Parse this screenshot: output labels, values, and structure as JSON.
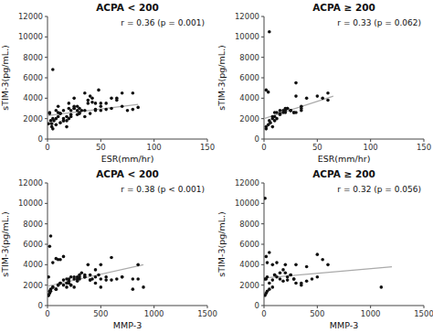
{
  "chart_data": [
    {
      "type": "scatter",
      "title": "ACPA < 200",
      "annotation": "r = 0.36 (p = 0.001)",
      "xlabel": "ESR(mm/hr)",
      "ylabel": "sTIM-3(pg/mL.)",
      "xlim": [
        0,
        150
      ],
      "ylim": [
        0,
        12000
      ],
      "xticks": [
        0,
        50,
        100,
        150
      ],
      "yticks": [
        0,
        2000,
        4000,
        6000,
        8000,
        10000,
        12000
      ],
      "series": [
        {
          "type": "scatter",
          "color": "#111111",
          "x": [
            2,
            3,
            5,
            1,
            4,
            8,
            10,
            12,
            15,
            18,
            20,
            22,
            25,
            28,
            30,
            32,
            35,
            38,
            40,
            42,
            45,
            48,
            50,
            55,
            60,
            65,
            70,
            80,
            85,
            5,
            8,
            12,
            15,
            18,
            22,
            25,
            28,
            30,
            35,
            38,
            42,
            45,
            50,
            2,
            4,
            6,
            8,
            10,
            12,
            15,
            18,
            20,
            22,
            25,
            28,
            30,
            35,
            40,
            45,
            50,
            55,
            60,
            65,
            70,
            75,
            80,
            5,
            10,
            15,
            20,
            25
          ],
          "values": [
            2600,
            1800,
            6800,
            1500,
            1200,
            2800,
            3200,
            2500,
            2000,
            1800,
            3500,
            2800,
            4000,
            3200,
            2600,
            2800,
            4500,
            3800,
            4200,
            3600,
            2900,
            4800,
            3500,
            2900,
            3000,
            4000,
            4500,
            2900,
            3100,
            1000,
            1400,
            1600,
            1800,
            1200,
            2200,
            3000,
            2400,
            3000,
            2800,
            3500,
            4000,
            3500,
            2800,
            2500,
            1500,
            1800,
            2000,
            2200,
            2500,
            1800,
            2200,
            2000,
            2400,
            3000,
            2800,
            2500,
            2200,
            2500,
            2800,
            3200,
            3500,
            4000,
            3800,
            3200,
            2800,
            4500,
            2000,
            2600,
            2800,
            3000,
            3200
          ]
        },
        {
          "type": "line",
          "color": "#aaaaaa",
          "x": [
            0,
            85
          ],
          "values": [
            2300,
            3400
          ]
        }
      ]
    },
    {
      "type": "scatter",
      "title": "ACPA ≥ 200",
      "annotation": "r = 0.33 (p = 0.062)",
      "xlabel": "ESR(mm/hr)",
      "ylabel": "sTIM-3(pg/mL.)",
      "xlim": [
        0,
        150
      ],
      "ylim": [
        0,
        12000
      ],
      "xticks": [
        0,
        50,
        100,
        150
      ],
      "yticks": [
        0,
        2000,
        4000,
        6000,
        8000,
        10000,
        12000
      ],
      "series": [
        {
          "type": "scatter",
          "color": "#111111",
          "x": [
            2,
            4,
            5,
            8,
            10,
            12,
            15,
            18,
            20,
            22,
            25,
            28,
            30,
            35,
            40,
            50,
            60,
            2,
            4,
            6,
            8,
            10,
            12,
            15,
            18,
            20,
            22,
            25,
            28,
            30,
            35,
            2,
            5,
            8,
            10,
            15,
            20,
            25,
            30,
            35,
            55,
            60
          ],
          "values": [
            4800,
            4600,
            10500,
            1200,
            1800,
            2000,
            2500,
            2600,
            2800,
            3000,
            2800,
            2600,
            4200,
            2800,
            4000,
            4200,
            4500,
            1000,
            1400,
            1600,
            2000,
            2200,
            2600,
            2400,
            2800,
            2600,
            3000,
            2800,
            2600,
            2600,
            3200,
            1200,
            1800,
            2200,
            2600,
            2800,
            3000,
            2800,
            5500,
            3000,
            4000,
            3800
          ]
        },
        {
          "type": "line",
          "color": "#aaaaaa",
          "x": [
            0,
            65
          ],
          "values": [
            2000,
            4200
          ]
        }
      ]
    },
    {
      "type": "scatter",
      "title": "ACPA < 200",
      "annotation": "r = 0.38 (p < 0.001)",
      "xlabel": "MMP-3",
      "ylabel": "sTIM-3(pg/mL.)",
      "xlim": [
        0,
        1500
      ],
      "ylim": [
        0,
        12000
      ],
      "xticks": [
        0,
        500,
        1000,
        1500
      ],
      "yticks": [
        0,
        2000,
        4000,
        6000,
        8000,
        10000,
        12000
      ],
      "series": [
        {
          "type": "scatter",
          "color": "#111111",
          "x": [
            10,
            20,
            30,
            50,
            80,
            100,
            120,
            150,
            180,
            200,
            220,
            250,
            280,
            300,
            320,
            350,
            380,
            400,
            420,
            450,
            480,
            500,
            550,
            600,
            650,
            700,
            800,
            850,
            900,
            10,
            20,
            30,
            50,
            80,
            100,
            120,
            150,
            180,
            200,
            220,
            250,
            280,
            300,
            350,
            400,
            450,
            500,
            10,
            20,
            30,
            50,
            80,
            100,
            120,
            150,
            180,
            200,
            220,
            250,
            280,
            300,
            350,
            400,
            450,
            500,
            550,
            600,
            700,
            800,
            850
          ],
          "values": [
            2800,
            5800,
            6800,
            4200,
            4600,
            4500,
            4500,
            4800,
            2600,
            2600,
            2800,
            2600,
            2800,
            3000,
            3200,
            2800,
            4000,
            2500,
            2600,
            2800,
            3000,
            1800,
            2500,
            4700,
            2600,
            2800,
            2600,
            4000,
            1800,
            1000,
            1200,
            1400,
            1800,
            1600,
            2000,
            2200,
            2500,
            2200,
            2400,
            2000,
            2800,
            2600,
            2800,
            3000,
            3000,
            3500,
            4000,
            1000,
            1400,
            1600,
            1800,
            1600,
            2000,
            2200,
            2000,
            1800,
            2200,
            2000,
            1800,
            2400,
            2600,
            2800,
            2500,
            2200,
            2600,
            2800,
            2500,
            2800,
            1600,
            2600
          ]
        },
        {
          "type": "line",
          "color": "#aaaaaa",
          "x": [
            0,
            900
          ],
          "values": [
            1900,
            4000
          ]
        }
      ]
    },
    {
      "type": "scatter",
      "title": "ACPA ≥ 200",
      "annotation": "r = 0.32 (p = 0.056)",
      "xlabel": "MMP-3",
      "ylabel": "sTIM-3(pg/mL.)",
      "xlim": [
        0,
        1500
      ],
      "ylim": [
        0,
        12000
      ],
      "xticks": [
        0,
        500,
        1000,
        1500
      ],
      "yticks": [
        0,
        2000,
        4000,
        6000,
        8000,
        10000,
        12000
      ],
      "series": [
        {
          "type": "scatter",
          "color": "#111111",
          "x": [
            10,
            20,
            30,
            50,
            80,
            100,
            120,
            150,
            180,
            200,
            220,
            250,
            280,
            300,
            350,
            400,
            500,
            550,
            600,
            1100,
            10,
            20,
            30,
            50,
            80,
            100,
            120,
            150,
            180,
            200,
            220,
            250,
            280,
            300,
            350,
            400,
            450,
            500,
            10,
            20,
            30,
            50,
            80
          ],
          "values": [
            10500,
            4800,
            4200,
            5200,
            4000,
            3000,
            4200,
            3200,
            3500,
            4000,
            2500,
            3000,
            2600,
            4000,
            2200,
            3800,
            5000,
            4500,
            4000,
            1800,
            2600,
            2600,
            2800,
            2200,
            2500,
            3000,
            2800,
            2600,
            2400,
            3200,
            2800,
            3000,
            2600,
            2200,
            2000,
            2400,
            2600,
            2800,
            1000,
            1200,
            1400,
            1600,
            1800
          ]
        },
        {
          "type": "line",
          "color": "#aaaaaa",
          "x": [
            0,
            1200
          ],
          "values": [
            2700,
            3800
          ]
        }
      ]
    }
  ]
}
